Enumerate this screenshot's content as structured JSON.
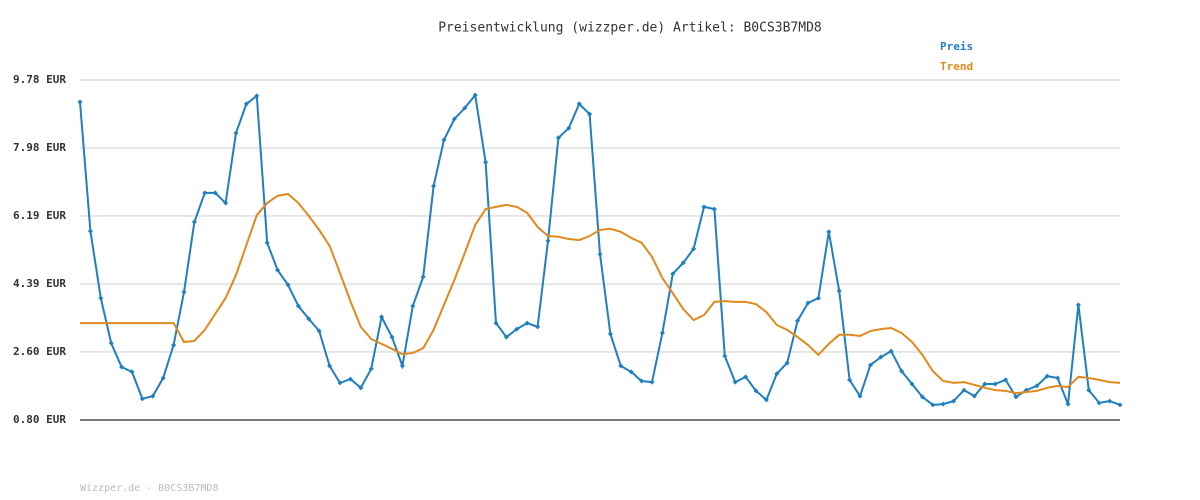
{
  "chart_data": {
    "type": "line",
    "title": "Preisentwicklung (wizzper.de) Artikel: B0CS3B7MD8",
    "footer": "Wizzper.de - B0CS3B7MD8",
    "ylim": [
      0.8,
      9.78
    ],
    "yticks": [
      {
        "value": 0.8,
        "label": "0.80 EUR"
      },
      {
        "value": 2.6,
        "label": "2.60 EUR"
      },
      {
        "value": 4.39,
        "label": "4.39 EUR"
      },
      {
        "value": 6.19,
        "label": "6.19 EUR"
      },
      {
        "value": 7.98,
        "label": "7.98 EUR"
      },
      {
        "value": 9.78,
        "label": "9.78 EUR"
      }
    ],
    "grid": true,
    "legend": "top-right",
    "series": [
      {
        "name": "Preis",
        "color": "#1f7fbf",
        "markers": true,
        "values": [
          9.2,
          5.79,
          4.02,
          2.83,
          2.2,
          2.07,
          1.36,
          1.43,
          1.91,
          2.78,
          4.18,
          6.03,
          6.8,
          6.8,
          6.53,
          8.38,
          9.15,
          9.36,
          5.48,
          4.76,
          4.37,
          3.81,
          3.47,
          3.15,
          2.23,
          1.78,
          1.88,
          1.65,
          2.15,
          3.52,
          2.99,
          2.23,
          3.81,
          4.58,
          6.98,
          8.2,
          8.75,
          9.04,
          9.38,
          7.61,
          3.36,
          2.99,
          3.2,
          3.36,
          3.26,
          5.53,
          8.25,
          8.51,
          9.15,
          8.88,
          5.18,
          3.07,
          2.23,
          2.07,
          1.83,
          1.8,
          3.1,
          4.66,
          4.95,
          5.32,
          6.43,
          6.37,
          2.49,
          1.8,
          1.94,
          1.57,
          1.33,
          2.02,
          2.31,
          3.42,
          3.89,
          4.02,
          5.77,
          4.21,
          1.86,
          1.43,
          2.25,
          2.46,
          2.62,
          2.09,
          1.75,
          1.41,
          1.2,
          1.22,
          1.3,
          1.59,
          1.43,
          1.75,
          1.75,
          1.86,
          1.41,
          1.59,
          1.7,
          1.96,
          1.91,
          1.22,
          3.84,
          1.59,
          1.25,
          1.3,
          1.2
        ]
      },
      {
        "name": "Trend",
        "color": "#e08a1e",
        "markers": false,
        "values": [
          3.36,
          3.36,
          3.36,
          3.36,
          3.36,
          3.36,
          3.36,
          3.36,
          3.36,
          3.36,
          2.86,
          2.89,
          3.18,
          3.6,
          4.02,
          4.63,
          5.42,
          6.21,
          6.53,
          6.72,
          6.77,
          6.53,
          6.19,
          5.82,
          5.4,
          4.68,
          3.94,
          3.26,
          2.94,
          2.81,
          2.68,
          2.54,
          2.57,
          2.7,
          3.18,
          3.84,
          4.5,
          5.21,
          5.95,
          6.37,
          6.43,
          6.48,
          6.43,
          6.27,
          5.9,
          5.66,
          5.64,
          5.58,
          5.55,
          5.66,
          5.82,
          5.85,
          5.77,
          5.61,
          5.48,
          5.11,
          4.55,
          4.15,
          3.73,
          3.44,
          3.57,
          3.92,
          3.94,
          3.92,
          3.92,
          3.86,
          3.65,
          3.31,
          3.18,
          2.99,
          2.78,
          2.52,
          2.81,
          3.05,
          3.05,
          3.02,
          3.15,
          3.2,
          3.23,
          3.1,
          2.86,
          2.52,
          2.09,
          1.83,
          1.78,
          1.8,
          1.73,
          1.65,
          1.59,
          1.57,
          1.51,
          1.54,
          1.57,
          1.65,
          1.7,
          1.67,
          1.94,
          1.91,
          1.86,
          1.8,
          1.78
        ]
      }
    ]
  }
}
